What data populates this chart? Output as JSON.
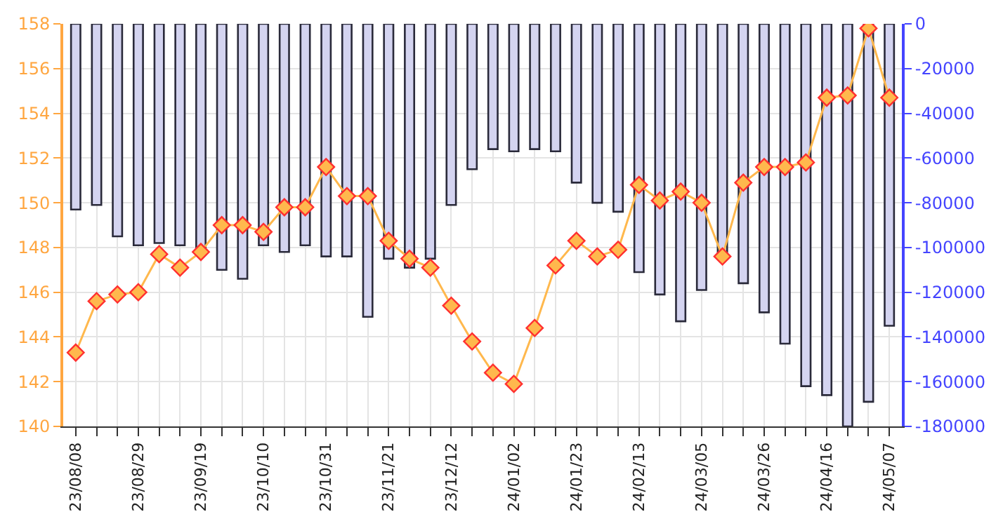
{
  "chart_data": {
    "type": "line",
    "categories": [
      "23/08/08",
      null,
      null,
      "23/08/29",
      null,
      null,
      "23/09/19",
      null,
      null,
      "23/10/10",
      null,
      null,
      "23/10/31",
      null,
      null,
      "23/11/21",
      null,
      null,
      "23/12/12",
      null,
      null,
      "24/01/02",
      null,
      null,
      "24/01/23",
      null,
      null,
      "24/02/13",
      null,
      null,
      "24/03/05",
      null,
      null,
      "24/03/26",
      null,
      null,
      "24/04/16",
      null,
      null,
      "24/05/07"
    ],
    "series": [
      {
        "type": "bar",
        "axis": "y2",
        "color": "#d4d4f0",
        "values": [
          -83000,
          -81000,
          -95000,
          -99000,
          -98000,
          -99000,
          -100000,
          -110000,
          -114000,
          -99000,
          -102000,
          -99000,
          -104000,
          -104000,
          -131000,
          -105000,
          -109000,
          -105000,
          -81000,
          -65000,
          -56000,
          -57000,
          -56000,
          -57000,
          -71000,
          -80000,
          -84000,
          -111000,
          -121000,
          -133000,
          -119000,
          -103000,
          -116000,
          -129000,
          -143000,
          -162000,
          -166000,
          -180000,
          -169000,
          -135000
        ]
      },
      {
        "color": "#ffb84d",
        "values": [
          143.3,
          145.6,
          145.9,
          146.0,
          147.7,
          147.1,
          147.8,
          149.0,
          149.0,
          148.7,
          149.8,
          149.8,
          151.6,
          150.3,
          150.3,
          148.3,
          147.5,
          147.1,
          145.4,
          143.8,
          142.4,
          141.9,
          144.4,
          147.2,
          148.3,
          147.6,
          147.9,
          150.8,
          150.1,
          150.5,
          150.0,
          147.6,
          150.9,
          151.6,
          151.6,
          151.8,
          154.7,
          154.8,
          157.8,
          154.7
        ]
      }
    ],
    "ylim": [
      140,
      158
    ],
    "yticks": [
      140,
      142,
      144,
      146,
      148,
      150,
      152,
      154,
      156,
      158
    ],
    "y2lim": [
      -180000,
      0
    ],
    "y2ticks": [
      0,
      -20000,
      -40000,
      -60000,
      -80000,
      -100000,
      -120000,
      -140000,
      -160000,
      -180000
    ],
    "grid": true,
    "marker": "diamond",
    "line_style": "solid"
  }
}
